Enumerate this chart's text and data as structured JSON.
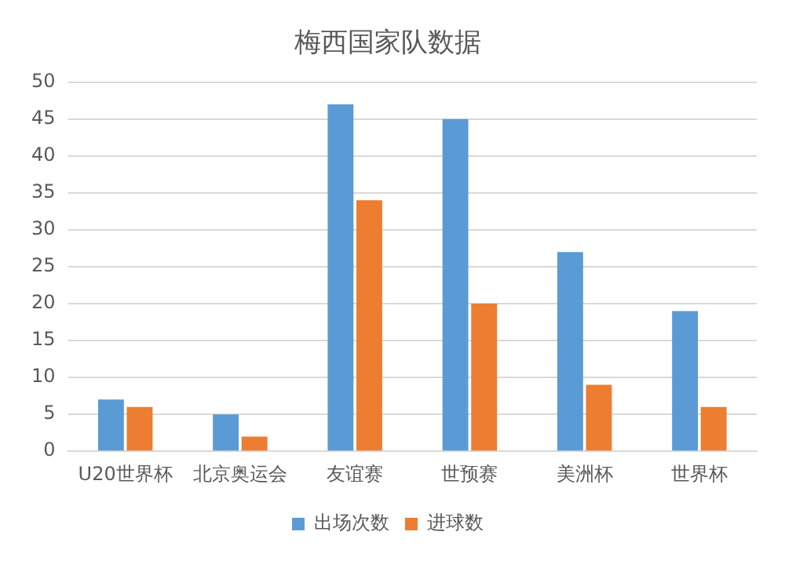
{
  "chart_data": {
    "type": "bar",
    "title": "梅西国家队数据",
    "categories": [
      "U20世界杯",
      "北京奥运会",
      "友谊赛",
      "世预赛",
      "美洲杯",
      "世界杯"
    ],
    "series": [
      {
        "name": "出场次数",
        "color": "#5b9bd5",
        "values": [
          7,
          5,
          47,
          45,
          27,
          19
        ]
      },
      {
        "name": "进球数",
        "color": "#ed7d31",
        "values": [
          6,
          2,
          34,
          20,
          9,
          6
        ]
      }
    ],
    "ylim": [
      0,
      50
    ],
    "yticks": [
      0,
      5,
      10,
      15,
      20,
      25,
      30,
      35,
      40,
      45,
      50
    ],
    "grid": "y",
    "legend": "bottom"
  }
}
